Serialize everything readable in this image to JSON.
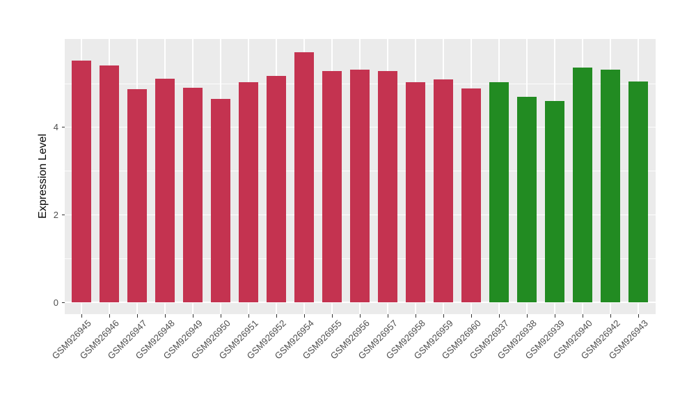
{
  "figure": {
    "background": "#FFFFFF",
    "panel_background": "#EBEBEB",
    "gridline_color": "#FFFFFF",
    "tick_mark_color": "#333333",
    "tick_label_color": "#4D4D4D"
  },
  "chart_data": {
    "type": "bar",
    "title": "",
    "xlabel": "",
    "ylabel": "Expression Level",
    "legend_position": "none",
    "grid": "on",
    "ylim": [
      0,
      5.99
    ],
    "yticks": [
      0,
      2,
      4
    ],
    "ytick_labels": [
      "0",
      "2",
      "4"
    ],
    "minor_gridlines": [
      1,
      3,
      5
    ],
    "categories": [
      "GSM926945",
      "GSM926946",
      "GSM926947",
      "GSM926948",
      "GSM926949",
      "GSM926950",
      "GSM926951",
      "GSM926952",
      "GSM926954",
      "GSM926955",
      "GSM926956",
      "GSM926957",
      "GSM926958",
      "GSM926959",
      "GSM926960",
      "GSM926937",
      "GSM926938",
      "GSM926939",
      "GSM926940",
      "GSM926942",
      "GSM926943"
    ],
    "values": [
      5.51,
      5.41,
      4.87,
      5.1,
      4.89,
      4.65,
      5.02,
      5.16,
      5.71,
      5.28,
      5.31,
      5.28,
      5.03,
      5.09,
      4.88,
      5.03,
      4.69,
      4.6,
      5.35,
      5.31,
      5.04
    ],
    "groups": [
      "group1",
      "group1",
      "group1",
      "group1",
      "group1",
      "group1",
      "group1",
      "group1",
      "group1",
      "group1",
      "group1",
      "group1",
      "group1",
      "group1",
      "group1",
      "group2",
      "group2",
      "group2",
      "group2",
      "group2",
      "group2"
    ],
    "group_colors": {
      "group1": "#C43350",
      "group2": "#228B22"
    }
  }
}
